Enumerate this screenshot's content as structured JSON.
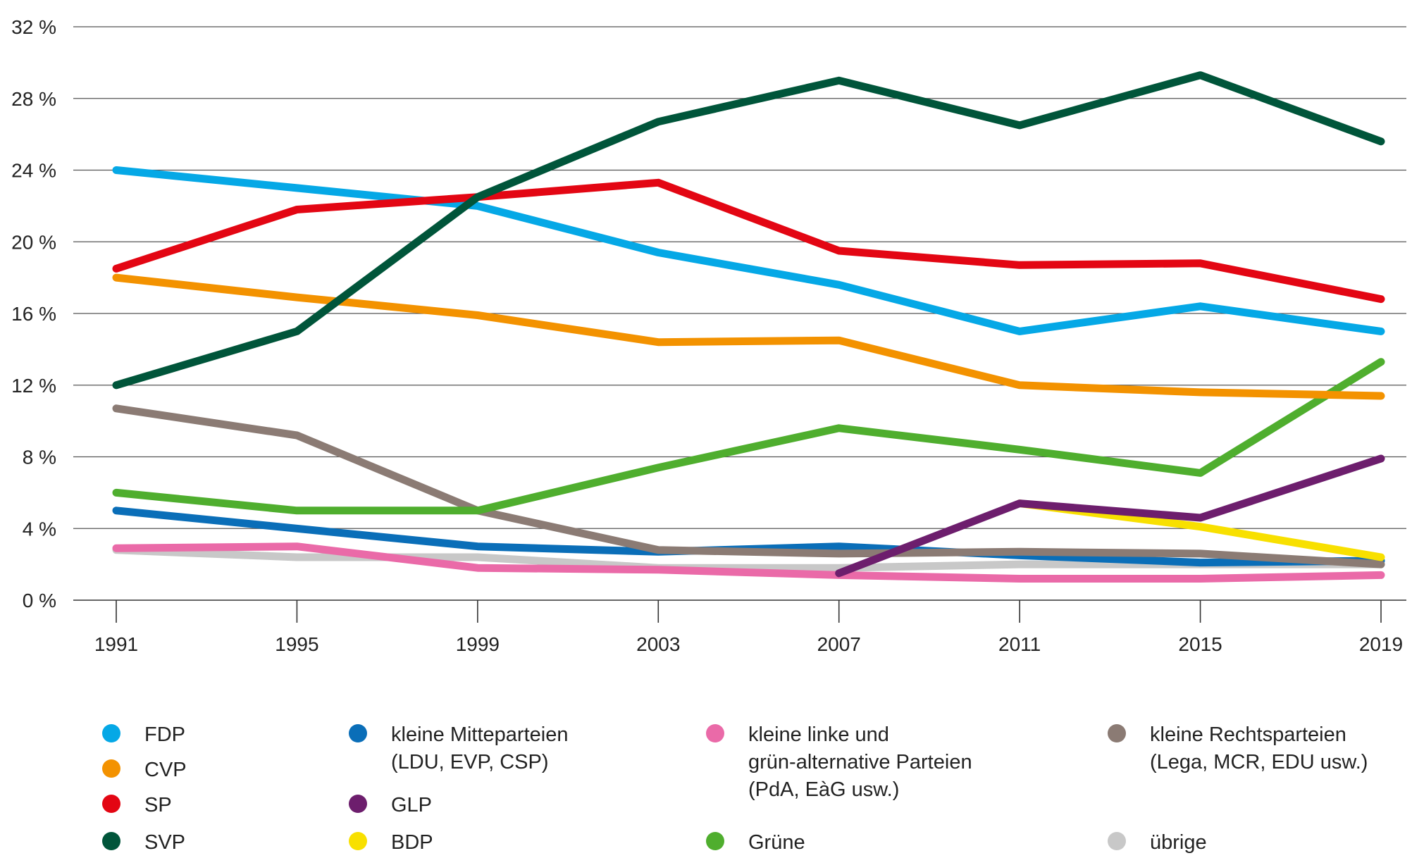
{
  "chart_data": {
    "type": "line",
    "title": "",
    "xlabel": "",
    "ylabel": "",
    "x": [
      1991,
      1995,
      1999,
      2003,
      2007,
      2011,
      2015,
      2019
    ],
    "x_tick_labels": [
      "1991",
      "1995",
      "1999",
      "2003",
      "2007",
      "2011",
      "2015",
      "2019"
    ],
    "ylim": [
      0,
      32
    ],
    "y_ticks": [
      0,
      4,
      8,
      12,
      16,
      20,
      24,
      28,
      32
    ],
    "y_tick_labels": [
      "0 %",
      "4 %",
      "8 %",
      "12 %",
      "16 %",
      "20 %",
      "24 %",
      "28 %",
      "32 %"
    ],
    "grid": "horizontal",
    "legend_position": "bottom",
    "series": [
      {
        "name": "übrige",
        "color": "#c8c8c8",
        "values": [
          2.8,
          2.4,
          2.4,
          1.8,
          1.8,
          2.0,
          2.0,
          2.0
        ]
      },
      {
        "name": "kleine Mitteparteien\n(LDU, EVP, CSP)",
        "color": "#0a6eb8",
        "values": [
          5.0,
          4.0,
          3.0,
          2.7,
          3.0,
          2.5,
          2.1,
          2.2
        ]
      },
      {
        "name": "kleine Rechtsparteien\n(Lega, MCR, EDU usw.)",
        "color": "#8b7b74",
        "values": [
          10.7,
          9.2,
          5.0,
          2.8,
          2.6,
          2.7,
          2.6,
          2.0
        ]
      },
      {
        "name": "kleine linke und\ngrün-alternative Parteien\n(PdA, EàG usw.)",
        "color": "#ea6aa8",
        "values": [
          2.9,
          3.0,
          1.8,
          1.7,
          1.4,
          1.2,
          1.2,
          1.4
        ]
      },
      {
        "name": "BDP",
        "color": "#f8e000",
        "values": [
          null,
          null,
          null,
          null,
          null,
          5.4,
          4.1,
          2.4
        ]
      },
      {
        "name": "GLP",
        "color": "#6d1e6d",
        "values": [
          null,
          null,
          null,
          null,
          1.5,
          5.4,
          4.6,
          7.9
        ]
      },
      {
        "name": "Grüne",
        "color": "#4fae2e",
        "values": [
          6.0,
          5.0,
          5.0,
          7.4,
          9.6,
          8.4,
          7.1,
          13.3
        ]
      },
      {
        "name": "CVP",
        "color": "#f39200",
        "values": [
          18.0,
          16.9,
          15.9,
          14.4,
          14.5,
          12.0,
          11.6,
          11.4
        ]
      },
      {
        "name": "FDP",
        "color": "#05a8e6",
        "values": [
          24.0,
          23.0,
          22.0,
          19.4,
          17.6,
          15.0,
          16.4,
          15.0
        ]
      },
      {
        "name": "SP",
        "color": "#e30613",
        "values": [
          18.5,
          21.8,
          22.5,
          23.3,
          19.5,
          18.7,
          18.8,
          16.8
        ]
      },
      {
        "name": "SVP",
        "color": "#00553a",
        "values": [
          12.0,
          15.0,
          22.5,
          26.7,
          29.0,
          26.5,
          29.3,
          25.6
        ]
      }
    ],
    "legend": [
      {
        "label": "FDP",
        "color": "#05a8e6"
      },
      {
        "label": "CVP",
        "color": "#f39200"
      },
      {
        "label": "SP",
        "color": "#e30613"
      },
      {
        "label": "SVP",
        "color": "#00553a"
      },
      {
        "label": "kleine Mitteparteien\n(LDU, EVP, CSP)",
        "color": "#0a6eb8"
      },
      {
        "label": "GLP",
        "color": "#6d1e6d"
      },
      {
        "label": "BDP",
        "color": "#f8e000"
      },
      {
        "label": "kleine linke und\ngrün-alternative Parteien\n(PdA, EàG usw.)",
        "color": "#ea6aa8"
      },
      {
        "label": "Grüne",
        "color": "#4fae2e"
      },
      {
        "label": "kleine Rechtsparteien\n(Lega, MCR, EDU usw.)",
        "color": "#8b7b74"
      },
      {
        "label": "übrige",
        "color": "#c8c8c8"
      }
    ]
  }
}
